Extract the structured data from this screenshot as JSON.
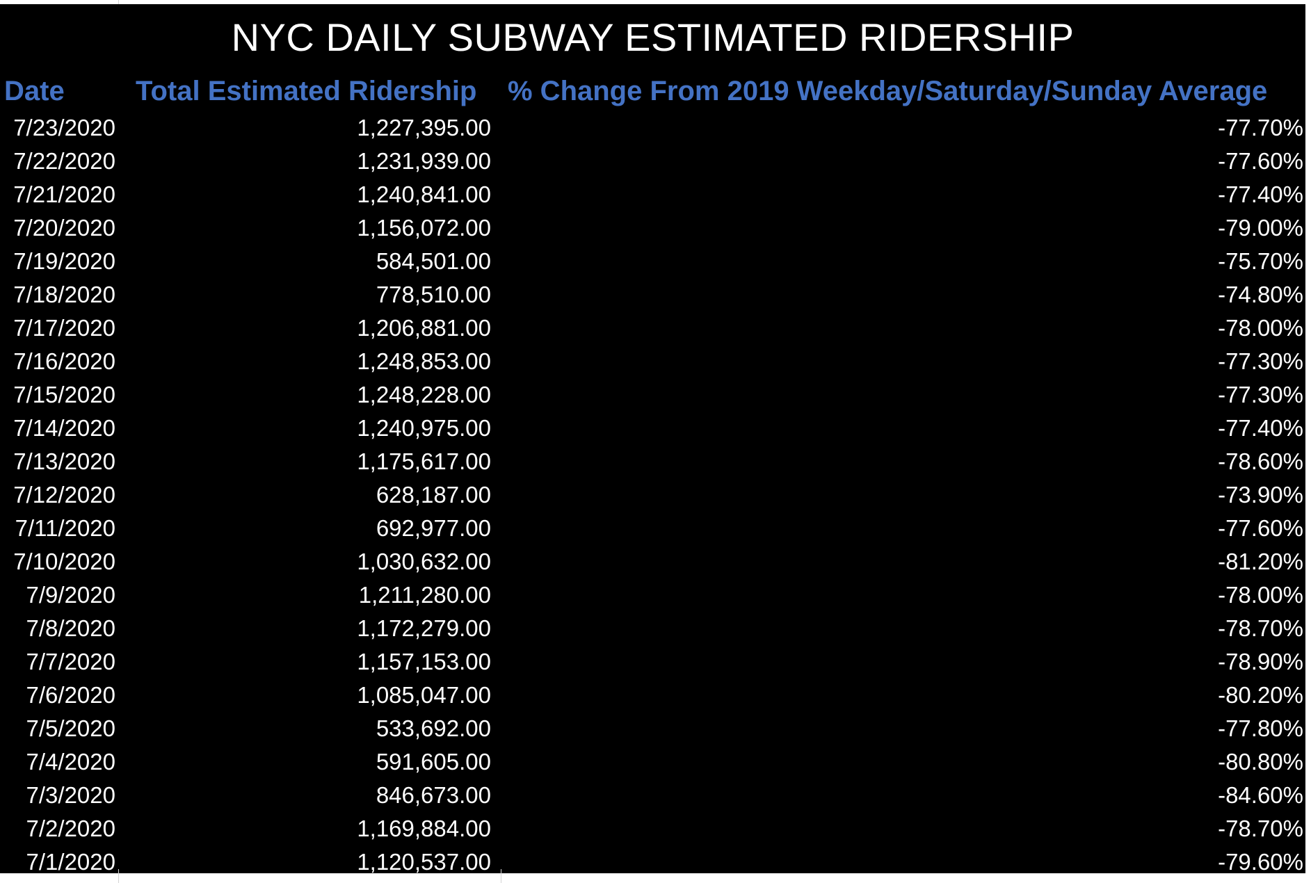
{
  "sheet": {
    "title": "NYC DAILY SUBWAY ESTIMATED RIDERSHIP",
    "headers": {
      "date": "Date",
      "total": "Total Estimated Ridership",
      "pct": "% Change From 2019 Weekday/Saturday/Sunday Average"
    },
    "rows": [
      {
        "date": "7/23/2020",
        "total": "1,227,395.00",
        "pct": "-77.70%"
      },
      {
        "date": "7/22/2020",
        "total": "1,231,939.00",
        "pct": "-77.60%"
      },
      {
        "date": "7/21/2020",
        "total": "1,240,841.00",
        "pct": "-77.40%"
      },
      {
        "date": "7/20/2020",
        "total": "1,156,072.00",
        "pct": "-79.00%"
      },
      {
        "date": "7/19/2020",
        "total": "584,501.00",
        "pct": "-75.70%"
      },
      {
        "date": "7/18/2020",
        "total": "778,510.00",
        "pct": "-74.80%"
      },
      {
        "date": "7/17/2020",
        "total": "1,206,881.00",
        "pct": "-78.00%"
      },
      {
        "date": "7/16/2020",
        "total": "1,248,853.00",
        "pct": "-77.30%"
      },
      {
        "date": "7/15/2020",
        "total": "1,248,228.00",
        "pct": "-77.30%"
      },
      {
        "date": "7/14/2020",
        "total": "1,240,975.00",
        "pct": "-77.40%"
      },
      {
        "date": "7/13/2020",
        "total": "1,175,617.00",
        "pct": "-78.60%"
      },
      {
        "date": "7/12/2020",
        "total": "628,187.00",
        "pct": "-73.90%"
      },
      {
        "date": "7/11/2020",
        "total": "692,977.00",
        "pct": "-77.60%"
      },
      {
        "date": "7/10/2020",
        "total": "1,030,632.00",
        "pct": "-81.20%"
      },
      {
        "date": "7/9/2020",
        "total": "1,211,280.00",
        "pct": "-78.00%"
      },
      {
        "date": "7/8/2020",
        "total": "1,172,279.00",
        "pct": "-78.70%"
      },
      {
        "date": "7/7/2020",
        "total": "1,157,153.00",
        "pct": "-78.90%"
      },
      {
        "date": "7/6/2020",
        "total": "1,085,047.00",
        "pct": "-80.20%"
      },
      {
        "date": "7/5/2020",
        "total": "533,692.00",
        "pct": "-77.80%"
      },
      {
        "date": "7/4/2020",
        "total": "591,605.00",
        "pct": "-80.80%"
      },
      {
        "date": "7/3/2020",
        "total": "846,673.00",
        "pct": "-84.60%"
      },
      {
        "date": "7/2/2020",
        "total": "1,169,884.00",
        "pct": "-78.70%"
      },
      {
        "date": "7/1/2020",
        "total": "1,120,537.00",
        "pct": "-79.60%"
      }
    ]
  },
  "colors": {
    "background": "#000000",
    "header": "#4472c4",
    "text": "#ffffff"
  }
}
